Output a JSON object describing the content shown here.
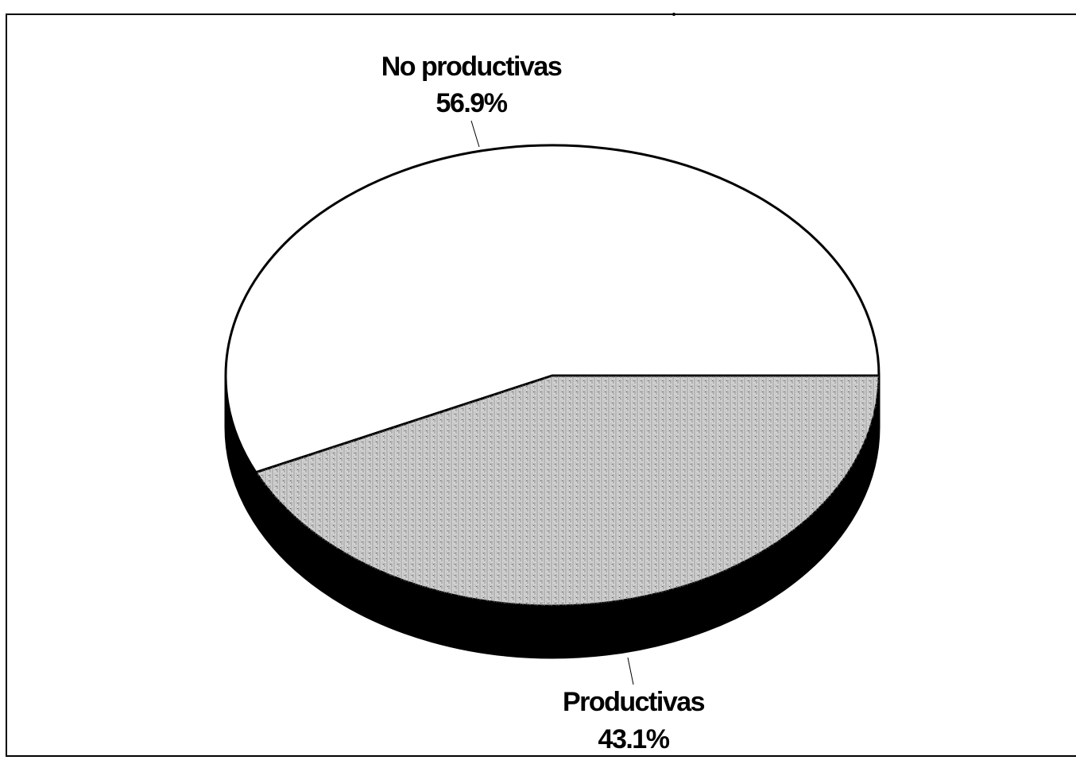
{
  "chart_data": {
    "type": "pie",
    "categories": [
      "No productivas",
      "Productivas"
    ],
    "values": [
      56.9,
      43.1
    ],
    "value_labels": [
      "56.9%",
      "43.1%"
    ],
    "colors": [
      "#ffffff",
      "#d2d2d2"
    ]
  }
}
